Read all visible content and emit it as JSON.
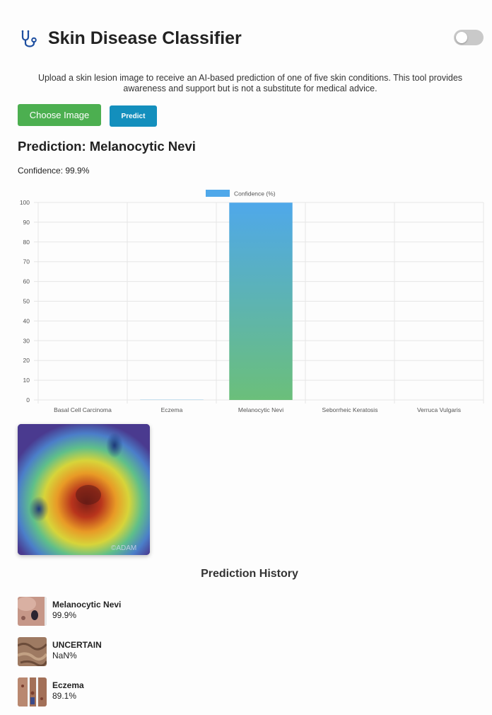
{
  "header": {
    "title": "Skin Disease Classifier",
    "logo_icon": "stethoscope-icon",
    "toggle_icon": "toggle-switch",
    "toggle_state": "off"
  },
  "description": "Upload a skin lesion image to receive an AI-based prediction of one of five skin conditions. This tool provides awareness and support but is not a substitute for medical advice.",
  "controls": {
    "choose_label": "Choose Image",
    "predict_label": "Predict",
    "choose_color": "#4caf50",
    "predict_color": "#138fbd"
  },
  "result": {
    "prediction_text": "Prediction: Melanocytic Nevi",
    "confidence_text": "Confidence: 99.9%"
  },
  "chart_data": {
    "type": "bar",
    "categories": [
      "Basal Cell Carcinoma",
      "Eczema",
      "Melanocytic Nevi",
      "Seborrheic Keratosis",
      "Verruca Vulgaris"
    ],
    "series": [
      {
        "name": "Confidence (%)",
        "values": [
          0,
          0.1,
          99.9,
          0,
          0
        ]
      }
    ],
    "ylim": [
      0,
      100
    ],
    "yticks": [
      0,
      10,
      20,
      30,
      40,
      50,
      60,
      70,
      80,
      90,
      100
    ],
    "legend_position": "top-center",
    "grid": true,
    "colors": {
      "bar_top": "#4fa8ea",
      "bar_bottom": "#6bbf7a",
      "legend": "#4fa8ea",
      "grid": "#e6e6e6"
    }
  },
  "heatmap": {
    "image_label": "Grad-CAM heatmap overlay",
    "icon": "heatmap-image"
  },
  "history": {
    "title": "Prediction History",
    "items": [
      {
        "label": "Melanocytic Nevi",
        "confidence": "99.9%",
        "thumb": "mole-thumbnail"
      },
      {
        "label": "UNCERTAIN",
        "confidence": "NaN%",
        "thumb": "rough-skin-thumbnail"
      },
      {
        "label": "Eczema",
        "confidence": "89.1%",
        "thumb": "eczema-thumbnail"
      }
    ]
  }
}
